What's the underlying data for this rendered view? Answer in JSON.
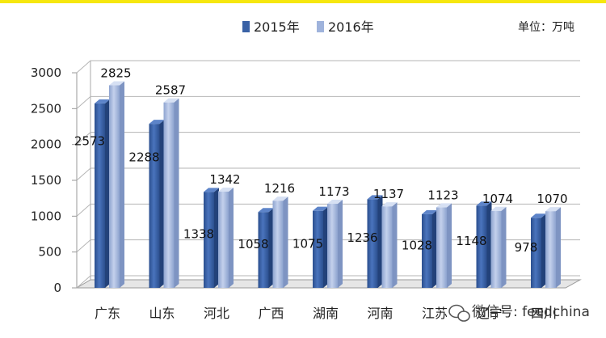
{
  "chart_data": {
    "type": "bar",
    "categories": [
      "广东",
      "山东",
      "河北",
      "广西",
      "湖南",
      "河南",
      "江苏",
      "辽宁",
      "四川"
    ],
    "series": [
      {
        "name": "2015年",
        "values": [
          2573,
          2288,
          1338,
          1058,
          1075,
          1236,
          1028,
          1148,
          978
        ],
        "color": "#3a62a6"
      },
      {
        "name": "2016年",
        "values": [
          2825,
          2587,
          1342,
          1216,
          1173,
          1137,
          1123,
          1074,
          1070
        ],
        "color": "#9fb3dc"
      }
    ],
    "unit_label": "单位：万吨",
    "ylim": [
      0,
      3000
    ],
    "yticks": [
      0,
      500,
      1000,
      1500,
      2000,
      2500,
      3000
    ],
    "grid": true,
    "legend_position": "top-center",
    "view": "3d",
    "watermark": "微信号: feedchina"
  }
}
